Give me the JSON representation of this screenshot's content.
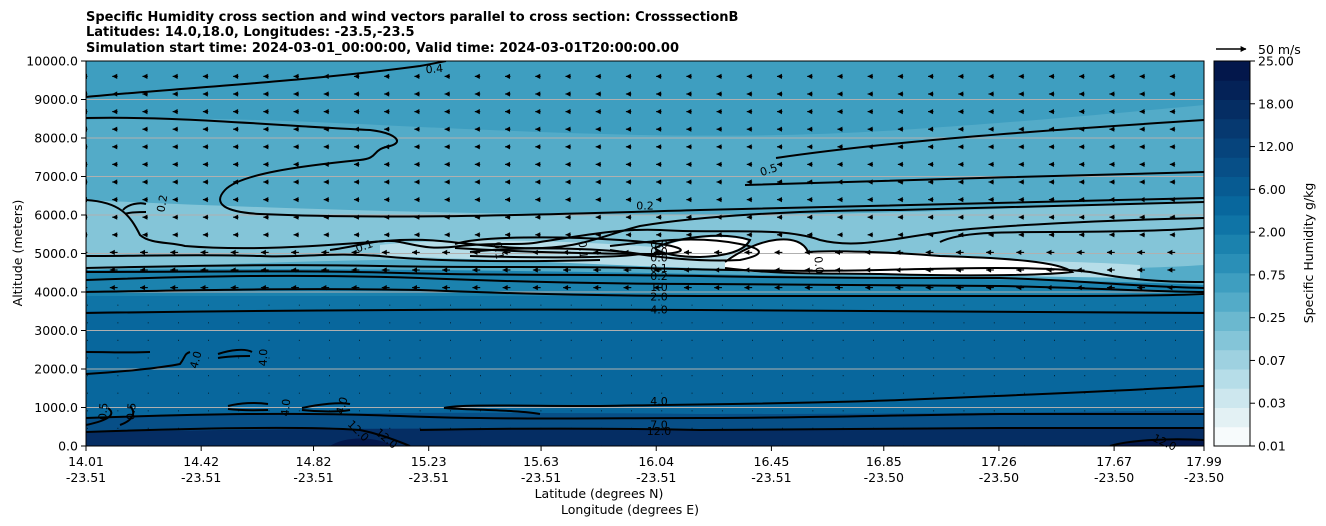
{
  "chart_data": {
    "type": "contour",
    "title_lines": [
      "Specific Humidity cross section and wind vectors parallel to cross section: CrosssectionB",
      "Latitudes: 14.0,18.0, Longitudes: -23.5,-23.5",
      "Simulation start time: 2024-03-01_00:00:00, Valid time: 2024-03-01T20:00:00.00"
    ],
    "ylabel": "Altitude (meters)",
    "xlabel_lines": [
      "Latitude (degrees N)",
      "Longitude (degrees E)"
    ],
    "ylim": [
      0,
      10000
    ],
    "y_ticks": [
      0,
      1000,
      2000,
      3000,
      4000,
      5000,
      6000,
      7000,
      8000,
      9000,
      10000
    ],
    "y_tick_labels": [
      "0.0",
      "1000.0",
      "2000.0",
      "3000.0",
      "4000.0",
      "5000.0",
      "6000.0",
      "7000.0",
      "8000.0",
      "9000.0",
      "10000.0"
    ],
    "x_range": [
      14.01,
      17.99
    ],
    "x_ticks": [
      {
        "lat": "14.01",
        "lon": "-23.51",
        "pos": 14.01
      },
      {
        "lat": "14.42",
        "lon": "-23.51",
        "pos": 14.42
      },
      {
        "lat": "14.82",
        "lon": "-23.51",
        "pos": 14.82
      },
      {
        "lat": "15.23",
        "lon": "-23.51",
        "pos": 15.23
      },
      {
        "lat": "15.63",
        "lon": "-23.51",
        "pos": 15.63
      },
      {
        "lat": "16.04",
        "lon": "-23.51",
        "pos": 16.04
      },
      {
        "lat": "16.45",
        "lon": "-23.51",
        "pos": 16.45
      },
      {
        "lat": "16.85",
        "lon": "-23.50",
        "pos": 16.85
      },
      {
        "lat": "17.26",
        "lon": "-23.50",
        "pos": 17.26
      },
      {
        "lat": "17.67",
        "lon": "-23.50",
        "pos": 17.67
      },
      {
        "lat": "17.99",
        "lon": "-23.50",
        "pos": 17.99
      }
    ],
    "colorbar": {
      "label": "Specific Humidity g/kg",
      "tick_labels": [
        "0.01",
        "0.03",
        "0.07",
        "0.25",
        "0.75",
        "2.00",
        "6.00",
        "12.00",
        "18.00",
        "25.00"
      ],
      "colors": [
        "#f7fbfc",
        "#e3f1f4",
        "#cde7ee",
        "#b6dde8",
        "#9ed1e0",
        "#84c5d8",
        "#6bb8cf",
        "#53abc8",
        "#3e9ec0",
        "#2a8fb7",
        "#1b82ae",
        "#0f74a6",
        "#08679d",
        "#075b92",
        "#074f87",
        "#06447c",
        "#063970",
        "#052d63",
        "#042257",
        "#03174b"
      ]
    },
    "quiver_key": {
      "label": "50 m/s",
      "value": 50
    },
    "wind": {
      "u_upper": -9,
      "u_mid": -13,
      "u_low": 0.5
    },
    "contour_labels": [
      {
        "text": "0.2",
        "x": 14.28,
        "y": 6300,
        "rot": -80
      },
      {
        "text": "0.1",
        "x": 15.0,
        "y": 5200,
        "rot": -20
      },
      {
        "text": "0.1",
        "x": 15.48,
        "y": 5080,
        "rot": 80
      },
      {
        "text": "0.1",
        "x": 15.78,
        "y": 5100,
        "rot": 85
      },
      {
        "text": "0.2",
        "x": 16.0,
        "y": 6250,
        "rot": 0
      },
      {
        "text": "0.5",
        "x": 16.44,
        "y": 7180,
        "rot": -18
      },
      {
        "text": "0.0",
        "x": 16.05,
        "y": 5250,
        "rot": 0
      },
      {
        "text": "0.0",
        "x": 16.05,
        "y": 5050,
        "rot": 0
      },
      {
        "text": "0.0",
        "x": 16.05,
        "y": 4900,
        "rot": 0
      },
      {
        "text": "0.1",
        "x": 16.05,
        "y": 4620,
        "rot": 0
      },
      {
        "text": "0.2",
        "x": 16.05,
        "y": 4420,
        "rot": 0
      },
      {
        "text": "1.0",
        "x": 16.05,
        "y": 4130,
        "rot": 0
      },
      {
        "text": "2.0",
        "x": 16.05,
        "y": 3880,
        "rot": 0
      },
      {
        "text": "4.0",
        "x": 16.05,
        "y": 3550,
        "rot": 0
      },
      {
        "text": "0.0",
        "x": 16.62,
        "y": 4700,
        "rot": 85
      },
      {
        "text": "0.4",
        "x": 15.25,
        "y": 9800,
        "rot": -5
      },
      {
        "text": "4.0",
        "x": 14.4,
        "y": 2240,
        "rot": -75
      },
      {
        "text": "4.0",
        "x": 14.64,
        "y": 2300,
        "rot": -88
      },
      {
        "text": "4.0",
        "x": 14.72,
        "y": 1000,
        "rot": -85
      },
      {
        "text": "4.0",
        "x": 14.92,
        "y": 1050,
        "rot": -75
      },
      {
        "text": "0.5",
        "x": 14.07,
        "y": 900,
        "rot": -85
      },
      {
        "text": "0.5",
        "x": 14.17,
        "y": 900,
        "rot": -85
      },
      {
        "text": "12.0",
        "x": 14.98,
        "y": 400,
        "rot": 45
      },
      {
        "text": "12.0",
        "x": 15.08,
        "y": 200,
        "rot": 40
      },
      {
        "text": "4.0",
        "x": 16.05,
        "y": 1170,
        "rot": 0
      },
      {
        "text": "7.0",
        "x": 16.05,
        "y": 560,
        "rot": 0
      },
      {
        "text": "12.0",
        "x": 16.05,
        "y": 390,
        "rot": 0
      },
      {
        "text": "12.0",
        "x": 17.85,
        "y": 100,
        "rot": 25
      }
    ]
  }
}
